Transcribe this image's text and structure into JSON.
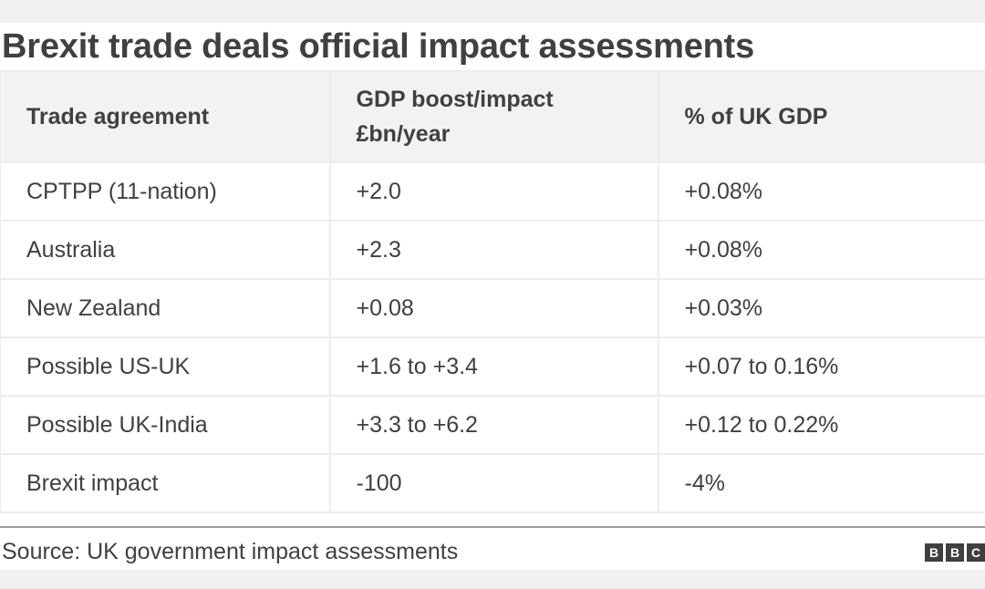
{
  "chart_data": {
    "type": "table",
    "title": "Brexit trade deals official impact assessments",
    "columns": [
      "Trade agreement",
      "GDP boost/impact\n£bn/year",
      "% of UK GDP"
    ],
    "rows": [
      [
        "CPTPP (11-nation)",
        "+2.0",
        "+0.08%"
      ],
      [
        "Australia",
        "+2.3",
        "+0.08%"
      ],
      [
        "New Zealand",
        "+0.08",
        "+0.03%"
      ],
      [
        "Possible US-UK",
        "+1.6 to +3.4",
        "+0.07 to 0.16%"
      ],
      [
        "Possible UK-India",
        "+3.3 to +6.2",
        "+0.12 to 0.22%"
      ],
      [
        "Brexit impact",
        "-100",
        "-4%"
      ]
    ],
    "source": "Source: UK government impact assessments",
    "logo_letters": [
      "B",
      "B",
      "C"
    ]
  }
}
